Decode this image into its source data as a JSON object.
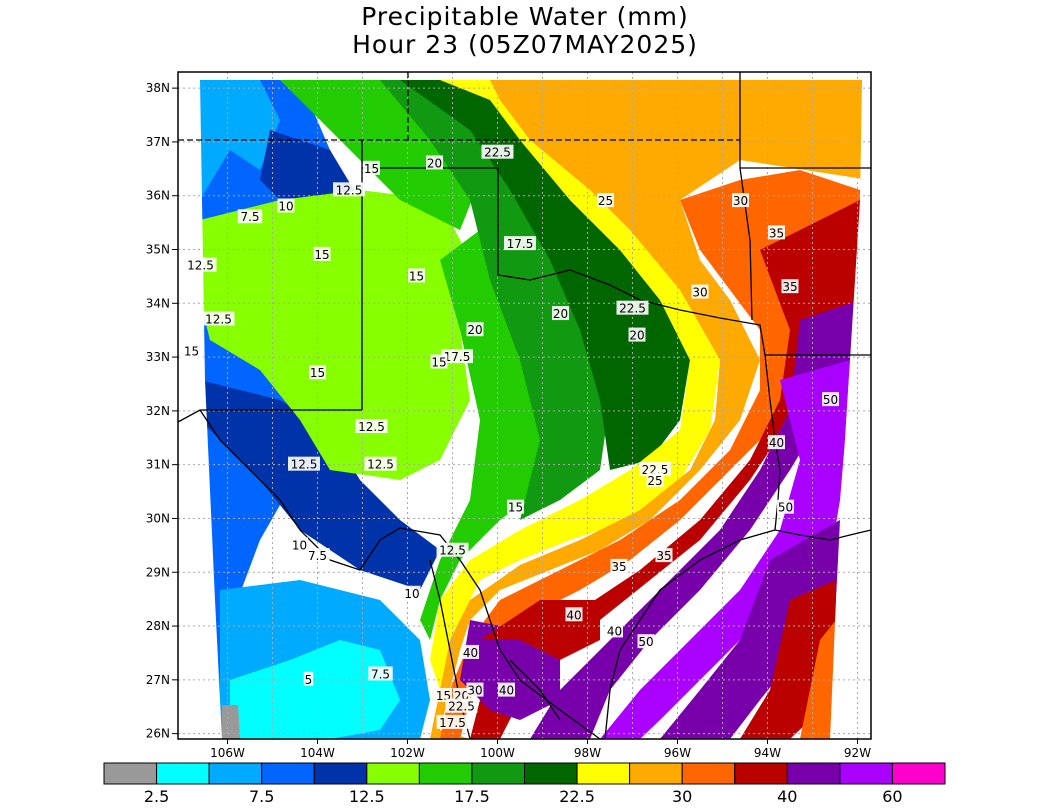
{
  "title": {
    "line1": "Precipitable Water (mm)",
    "line2": "Hour 23 (05Z07MAY2025)"
  },
  "axes": {
    "lat_labels": [
      "38N",
      "37N",
      "36N",
      "35N",
      "34N",
      "33N",
      "32N",
      "31N",
      "30N",
      "29N",
      "28N",
      "27N",
      "26N"
    ],
    "lon_labels": [
      "106W",
      "104W",
      "102W",
      "100W",
      "98W",
      "96W",
      "94W",
      "92W"
    ],
    "lat_range": [
      26,
      38
    ],
    "lon_range": [
      -107.1,
      -91.7
    ]
  },
  "contour_labels": [
    {
      "text": "22.5",
      "lon": -100.0,
      "lat": 36.8
    },
    {
      "text": "20",
      "lon": -101.4,
      "lat": 36.6
    },
    {
      "text": "15",
      "lon": -102.8,
      "lat": 36.5
    },
    {
      "text": "12.5",
      "lon": -103.3,
      "lat": 36.1
    },
    {
      "text": "10",
      "lon": -104.7,
      "lat": 35.8
    },
    {
      "text": "7.5",
      "lon": -105.5,
      "lat": 35.6
    },
    {
      "text": "25",
      "lon": -97.6,
      "lat": 35.9
    },
    {
      "text": "30",
      "lon": -94.6,
      "lat": 35.9
    },
    {
      "text": "35",
      "lon": -93.8,
      "lat": 35.3
    },
    {
      "text": "17.5",
      "lon": -99.5,
      "lat": 35.1
    },
    {
      "text": "15",
      "lon": -103.9,
      "lat": 34.9
    },
    {
      "text": "12.5",
      "lon": -106.6,
      "lat": 34.7
    },
    {
      "text": "15",
      "lon": -101.8,
      "lat": 34.5
    },
    {
      "text": "35",
      "lon": -93.5,
      "lat": 34.3
    },
    {
      "text": "30",
      "lon": -95.5,
      "lat": 34.2
    },
    {
      "text": "22.5",
      "lon": -97.0,
      "lat": 33.9
    },
    {
      "text": "20",
      "lon": -98.6,
      "lat": 33.8
    },
    {
      "text": "12.5",
      "lon": -106.2,
      "lat": 33.7
    },
    {
      "text": "20",
      "lon": -100.5,
      "lat": 33.5
    },
    {
      "text": "20",
      "lon": -96.9,
      "lat": 33.4
    },
    {
      "text": "15",
      "lon": -106.8,
      "lat": 33.1
    },
    {
      "text": "17.5",
      "lon": -100.9,
      "lat": 33.0
    },
    {
      "text": "15",
      "lon": -101.3,
      "lat": 32.9
    },
    {
      "text": "15",
      "lon": -104.0,
      "lat": 32.7
    },
    {
      "text": "50",
      "lon": -92.6,
      "lat": 32.2
    },
    {
      "text": "12.5",
      "lon": -102.8,
      "lat": 31.7
    },
    {
      "text": "40",
      "lon": -93.8,
      "lat": 31.4
    },
    {
      "text": "12.5",
      "lon": -104.3,
      "lat": 31.0
    },
    {
      "text": "12.5",
      "lon": -102.6,
      "lat": 31.0
    },
    {
      "text": "22.5",
      "lon": -96.5,
      "lat": 30.9
    },
    {
      "text": "25",
      "lon": -96.5,
      "lat": 30.7
    },
    {
      "text": "15",
      "lon": -99.6,
      "lat": 30.2
    },
    {
      "text": "50",
      "lon": -93.6,
      "lat": 30.2
    },
    {
      "text": "10",
      "lon": -104.4,
      "lat": 29.5
    },
    {
      "text": "7.5",
      "lon": -104.0,
      "lat": 29.3
    },
    {
      "text": "12.5",
      "lon": -101.0,
      "lat": 29.4
    },
    {
      "text": "35",
      "lon": -96.3,
      "lat": 29.3
    },
    {
      "text": "35",
      "lon": -97.3,
      "lat": 29.1
    },
    {
      "text": "10",
      "lon": -101.9,
      "lat": 28.6
    },
    {
      "text": "40",
      "lon": -98.3,
      "lat": 28.2
    },
    {
      "text": "40",
      "lon": -97.4,
      "lat": 27.9
    },
    {
      "text": "50",
      "lon": -96.7,
      "lat": 27.7
    },
    {
      "text": "40",
      "lon": -100.6,
      "lat": 27.5
    },
    {
      "text": "5",
      "lon": -104.2,
      "lat": 27.0
    },
    {
      "text": "7.5",
      "lon": -102.6,
      "lat": 27.1
    },
    {
      "text": "40",
      "lon": -99.8,
      "lat": 26.8
    },
    {
      "text": "15",
      "lon": -101.2,
      "lat": 26.7
    },
    {
      "text": "20",
      "lon": -100.8,
      "lat": 26.7
    },
    {
      "text": "30",
      "lon": -100.5,
      "lat": 26.8
    },
    {
      "text": "22.5",
      "lon": -100.8,
      "lat": 26.5
    },
    {
      "text": "17.5",
      "lon": -101.0,
      "lat": 26.2
    }
  ],
  "colorbar": {
    "colors": [
      "#999999",
      "#00ffff",
      "#00aaff",
      "#0066ff",
      "#0033aa",
      "#88ff00",
      "#22cc00",
      "#119911",
      "#006600",
      "#ffff00",
      "#ffaa00",
      "#ff6600",
      "#bb0000",
      "#7700aa",
      "#aa00ff",
      "#ff00cc"
    ],
    "labels": [
      {
        "text": "2.5",
        "index": 1
      },
      {
        "text": "7.5",
        "index": 3
      },
      {
        "text": "12.5",
        "index": 5
      },
      {
        "text": "17.5",
        "index": 7
      },
      {
        "text": "22.5",
        "index": 9
      },
      {
        "text": "30",
        "index": 11
      },
      {
        "text": "40",
        "index": 13
      },
      {
        "text": "60",
        "index": 15
      }
    ]
  },
  "map_colors": {
    "frame": "#000000",
    "grid": "#aaaaaa"
  }
}
